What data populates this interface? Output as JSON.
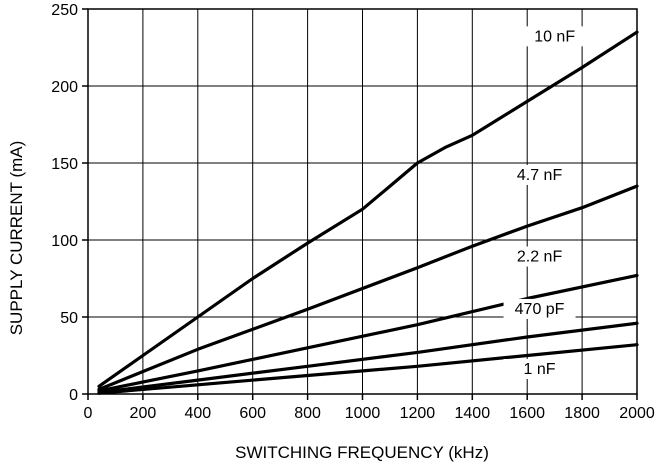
{
  "chart_data": {
    "type": "line",
    "title": "",
    "xlabel": "SWITCHING FREQUENCY (kHz)",
    "ylabel": "SUPPLY CURRENT (mA)",
    "xlim": [
      0,
      2000
    ],
    "ylim": [
      0,
      250
    ],
    "x_ticks": [
      "0",
      "200",
      "400",
      "600",
      "800",
      "1000",
      "1200",
      "1400",
      "1600",
      "1800",
      "2000"
    ],
    "y_ticks": [
      "0",
      "50",
      "100",
      "150",
      "200",
      "250"
    ],
    "grid": true,
    "legend": "none",
    "series": [
      {
        "name": "10 nF",
        "points": [
          [
            40,
            5
          ],
          [
            200,
            25
          ],
          [
            400,
            50
          ],
          [
            600,
            75
          ],
          [
            800,
            98
          ],
          [
            1000,
            120
          ],
          [
            1100,
            135
          ],
          [
            1200,
            150
          ],
          [
            1300,
            160
          ],
          [
            1400,
            168
          ],
          [
            1600,
            190
          ],
          [
            1800,
            212
          ],
          [
            2000,
            235
          ]
        ]
      },
      {
        "name": "4.7 nF",
        "points": [
          [
            40,
            3
          ],
          [
            400,
            29
          ],
          [
            800,
            55
          ],
          [
            1200,
            82
          ],
          [
            1400,
            96
          ],
          [
            1600,
            109
          ],
          [
            1800,
            121
          ],
          [
            2000,
            135
          ]
        ]
      },
      {
        "name": "2.2 nF",
        "points": [
          [
            40,
            2
          ],
          [
            400,
            15
          ],
          [
            800,
            30
          ],
          [
            1200,
            45
          ],
          [
            1600,
            62
          ],
          [
            2000,
            77
          ]
        ]
      },
      {
        "name": "470 pF",
        "points": [
          [
            40,
            1
          ],
          [
            400,
            9
          ],
          [
            800,
            18
          ],
          [
            1200,
            27
          ],
          [
            1600,
            37
          ],
          [
            2000,
            46
          ]
        ]
      },
      {
        "name": "1 nF",
        "points": [
          [
            40,
            0.5
          ],
          [
            400,
            6
          ],
          [
            800,
            12
          ],
          [
            1200,
            18
          ],
          [
            1600,
            25
          ],
          [
            2000,
            32
          ]
        ]
      }
    ]
  }
}
